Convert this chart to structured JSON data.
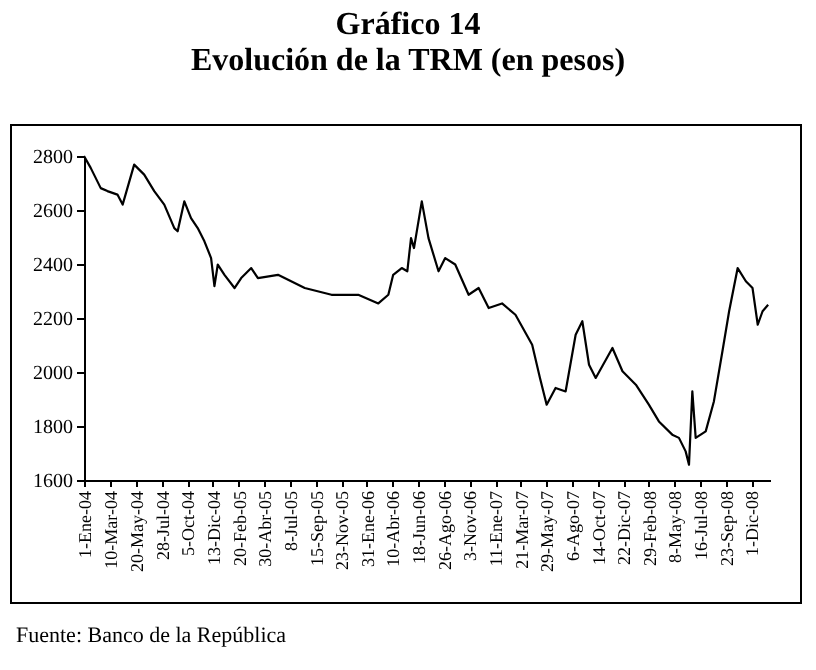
{
  "chart_data": {
    "type": "line",
    "title": "Gráfico 14",
    "subtitle": "Evolución de la TRM (en pesos)",
    "annotations": [
      "Fuente: Banco de la República"
    ],
    "xlim": [
      "2004-01-01",
      "2009-01-20"
    ],
    "ylim": [
      1600,
      2800
    ],
    "yticks": [
      1600,
      1800,
      2000,
      2200,
      2400,
      2600,
      2800
    ],
    "xticks": [
      {
        "value": "2004-01-01",
        "label": "1-Ene-04"
      },
      {
        "value": "2004-03-10",
        "label": "10-Mar-04"
      },
      {
        "value": "2004-05-20",
        "label": "20-May-04"
      },
      {
        "value": "2004-07-28",
        "label": "28-Jul-04"
      },
      {
        "value": "2004-10-05",
        "label": "5-Oct-04"
      },
      {
        "value": "2004-12-13",
        "label": "13-Dic-04"
      },
      {
        "value": "2005-02-20",
        "label": "20-Feb-05"
      },
      {
        "value": "2005-04-30",
        "label": "30-Abr-05"
      },
      {
        "value": "2005-07-08",
        "label": "8-Jul-05"
      },
      {
        "value": "2005-09-15",
        "label": "15-Sep-05"
      },
      {
        "value": "2005-11-23",
        "label": "23-Nov-05"
      },
      {
        "value": "2006-01-31",
        "label": "31-Ene-06"
      },
      {
        "value": "2006-04-10",
        "label": "10-Abr-06"
      },
      {
        "value": "2006-06-18",
        "label": "18-Jun-06"
      },
      {
        "value": "2006-08-26",
        "label": "26-Ago-06"
      },
      {
        "value": "2006-11-03",
        "label": "3-Nov-06"
      },
      {
        "value": "2007-01-11",
        "label": "11-Ene-07"
      },
      {
        "value": "2007-03-21",
        "label": "21-Mar-07"
      },
      {
        "value": "2007-05-29",
        "label": "29-May-07"
      },
      {
        "value": "2007-08-06",
        "label": "6-Ago-07"
      },
      {
        "value": "2007-10-14",
        "label": "14-Oct-07"
      },
      {
        "value": "2007-12-22",
        "label": "22-Dic-07"
      },
      {
        "value": "2008-02-29",
        "label": "29-Feb-08"
      },
      {
        "value": "2008-05-08",
        "label": "8-May-08"
      },
      {
        "value": "2008-07-16",
        "label": "16-Jul-08"
      },
      {
        "value": "2008-09-23",
        "label": "23-Sep-08"
      },
      {
        "value": "2008-12-01",
        "label": "1-Dic-08"
      }
    ],
    "grid": false,
    "marker": "none",
    "line_style": "solid",
    "series": [
      {
        "color": "#000000",
        "x": [
          "2004-01-01",
          "2004-01-19",
          "2004-02-15",
          "2004-03-04",
          "2004-03-31",
          "2004-04-14",
          "2004-05-15",
          "2004-06-11",
          "2004-07-08",
          "2004-08-04",
          "2004-08-31",
          "2004-09-09",
          "2004-09-27",
          "2004-10-15",
          "2004-11-02",
          "2004-11-20",
          "2004-12-08",
          "2004-12-17",
          "2004-12-26",
          "2005-01-13",
          "2005-02-09",
          "2005-02-27",
          "2005-03-26",
          "2005-04-13",
          "2005-06-06",
          "2005-08-17",
          "2005-10-28",
          "2006-01-08",
          "2006-03-03",
          "2006-03-30",
          "2006-04-12",
          "2006-05-05",
          "2006-05-20",
          "2006-05-30",
          "2006-06-07",
          "2006-06-28",
          "2006-07-16",
          "2006-08-12",
          "2006-08-30",
          "2006-09-26",
          "2006-11-01",
          "2006-11-28",
          "2006-12-25",
          "2007-01-30",
          "2007-03-07",
          "2007-04-21",
          "2007-05-12",
          "2007-05-30",
          "2007-06-23",
          "2007-07-20",
          "2007-08-16",
          "2007-09-03",
          "2007-09-21",
          "2007-10-09",
          "2007-11-23",
          "2007-12-20",
          "2008-01-25",
          "2008-02-29",
          "2008-03-27",
          "2008-05-02",
          "2008-05-20",
          "2008-06-07",
          "2008-06-16",
          "2008-06-25",
          "2008-07-04",
          "2008-07-31",
          "2008-08-22",
          "2008-09-14",
          "2008-10-02",
          "2008-10-25",
          "2008-11-16",
          "2008-12-04",
          "2008-12-18",
          "2008-12-31",
          "2009-01-15"
        ],
        "values": [
          2800,
          2756,
          2681,
          2670,
          2657,
          2620,
          2768,
          2731,
          2670,
          2620,
          2533,
          2521,
          2632,
          2570,
          2533,
          2484,
          2422,
          2318,
          2398,
          2360,
          2311,
          2348,
          2385,
          2348,
          2360,
          2311,
          2286,
          2286,
          2254,
          2286,
          2360,
          2385,
          2373,
          2496,
          2459,
          2632,
          2496,
          2373,
          2422,
          2398,
          2286,
          2311,
          2237,
          2254,
          2212,
          2101,
          1978,
          1879,
          1941,
          1928,
          2138,
          2188,
          2027,
          1978,
          2089,
          2003,
          1953,
          1879,
          1817,
          1768,
          1756,
          1706,
          1657,
          1928,
          1756,
          1780,
          1891,
          2077,
          2225,
          2385,
          2336,
          2311,
          2175,
          2225,
          2249
        ]
      }
    ]
  }
}
